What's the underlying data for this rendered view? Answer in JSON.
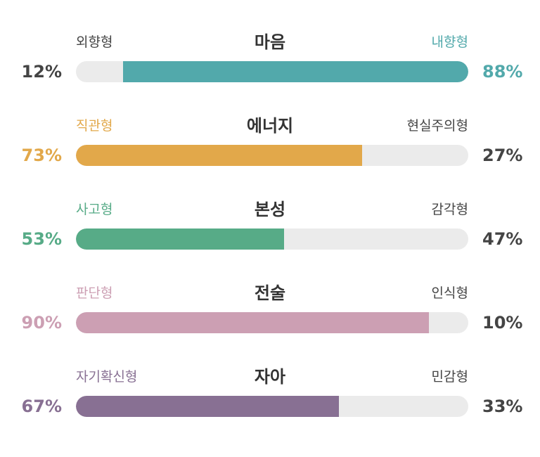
{
  "neutral": {
    "text_color": "#444444",
    "track_color": "#ebebeb"
  },
  "rows": [
    {
      "title": "마음",
      "left_label": "외향형",
      "right_label": "내향형",
      "left_pct": "12%",
      "right_pct": "88%",
      "color": "#52a9ab",
      "highlight": "right",
      "fill_fraction": 0.88
    },
    {
      "title": "에너지",
      "left_label": "직관형",
      "right_label": "현실주의형",
      "left_pct": "73%",
      "right_pct": "27%",
      "color": "#e2a84a",
      "highlight": "left",
      "fill_fraction": 0.73
    },
    {
      "title": "본성",
      "left_label": "사고형",
      "right_label": "감각형",
      "left_pct": "53%",
      "right_pct": "47%",
      "color": "#57ab87",
      "highlight": "left",
      "fill_fraction": 0.53
    },
    {
      "title": "전술",
      "left_label": "판단형",
      "right_label": "인식형",
      "left_pct": "90%",
      "right_pct": "10%",
      "color": "#cc9fb3",
      "highlight": "left",
      "fill_fraction": 0.9
    },
    {
      "title": "자아",
      "left_label": "자기확신형",
      "right_label": "민감형",
      "left_pct": "67%",
      "right_pct": "33%",
      "color": "#887093",
      "highlight": "left",
      "fill_fraction": 0.67
    }
  ]
}
